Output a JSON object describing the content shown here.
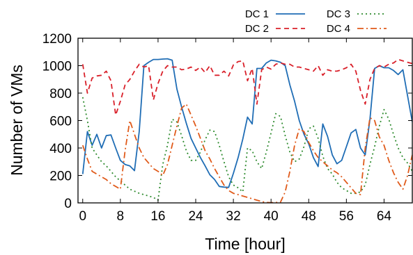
{
  "chart_data": {
    "type": "line",
    "xlabel": "Time [hour]",
    "ylabel": "Number of VMs",
    "xlim": [
      -1,
      70
    ],
    "ylim": [
      0,
      1200
    ],
    "xticks": [
      0,
      8,
      16,
      24,
      32,
      40,
      48,
      56,
      64
    ],
    "yticks": [
      0,
      200,
      400,
      600,
      800,
      1000,
      1200
    ],
    "legend_position": "top-right",
    "series": [
      {
        "name": "DC 1",
        "color": "#1f6db5",
        "dash": "solid",
        "points": [
          [
            0,
            210
          ],
          [
            1,
            520
          ],
          [
            2,
            420
          ],
          [
            3,
            500
          ],
          [
            4,
            400
          ],
          [
            5,
            490
          ],
          [
            6,
            495
          ],
          [
            7,
            400
          ],
          [
            8,
            310
          ],
          [
            9,
            280
          ],
          [
            10,
            270
          ],
          [
            11,
            235
          ],
          [
            12,
            520
          ],
          [
            13,
            1000
          ],
          [
            14,
            1025
          ],
          [
            15,
            1045
          ],
          [
            16,
            1045
          ],
          [
            17,
            1048
          ],
          [
            18,
            1050
          ],
          [
            19,
            1040
          ],
          [
            20,
            830
          ],
          [
            21,
            700
          ],
          [
            22,
            580
          ],
          [
            23,
            470
          ],
          [
            24,
            400
          ],
          [
            25,
            330
          ],
          [
            26,
            270
          ],
          [
            27,
            205
          ],
          [
            28,
            170
          ],
          [
            29,
            120
          ],
          [
            30,
            115
          ],
          [
            31,
            113
          ],
          [
            32,
            215
          ],
          [
            33,
            330
          ],
          [
            34,
            465
          ],
          [
            35,
            625
          ],
          [
            36,
            575
          ],
          [
            37,
            980
          ],
          [
            38,
            980
          ],
          [
            39,
            1020
          ],
          [
            40,
            1040
          ],
          [
            41,
            1035
          ],
          [
            42,
            1025
          ],
          [
            43,
            1000
          ],
          [
            44,
            860
          ],
          [
            45,
            740
          ],
          [
            46,
            600
          ],
          [
            47,
            500
          ],
          [
            48,
            430
          ],
          [
            49,
            330
          ],
          [
            50,
            265
          ],
          [
            51,
            575
          ],
          [
            52,
            485
          ],
          [
            53,
            350
          ],
          [
            54,
            285
          ],
          [
            55,
            310
          ],
          [
            56,
            410
          ],
          [
            57,
            510
          ],
          [
            58,
            535
          ],
          [
            59,
            400
          ],
          [
            60,
            350
          ],
          [
            61,
            610
          ],
          [
            62,
            980
          ],
          [
            63,
            1000
          ],
          [
            64,
            985
          ],
          [
            65,
            985
          ],
          [
            66,
            965
          ],
          [
            67,
            935
          ],
          [
            68,
            970
          ],
          [
            69,
            780
          ],
          [
            70,
            590
          ]
        ]
      },
      {
        "name": "DC 2",
        "color": "#d9202a",
        "dash": "dashed",
        "points": [
          [
            0,
            1010
          ],
          [
            1,
            800
          ],
          [
            2,
            910
          ],
          [
            3,
            925
          ],
          [
            4,
            930
          ],
          [
            5,
            960
          ],
          [
            6,
            890
          ],
          [
            7,
            640
          ],
          [
            8,
            740
          ],
          [
            9,
            860
          ],
          [
            10,
            900
          ],
          [
            11,
            960
          ],
          [
            12,
            1010
          ],
          [
            13,
            990
          ],
          [
            14,
            1000
          ],
          [
            15,
            750
          ],
          [
            16,
            870
          ],
          [
            17,
            960
          ],
          [
            18,
            1000
          ],
          [
            19,
            990
          ],
          [
            20,
            990
          ],
          [
            21,
            970
          ],
          [
            22,
            975
          ],
          [
            23,
            990
          ],
          [
            24,
            965
          ],
          [
            25,
            990
          ],
          [
            26,
            950
          ],
          [
            27,
            1000
          ],
          [
            28,
            930
          ],
          [
            29,
            930
          ],
          [
            30,
            960
          ],
          [
            31,
            925
          ],
          [
            32,
            1005
          ],
          [
            33,
            1030
          ],
          [
            34,
            1035
          ],
          [
            35,
            890
          ],
          [
            36,
            980
          ],
          [
            37,
            720
          ],
          [
            38,
            970
          ],
          [
            39,
            990
          ],
          [
            40,
            975
          ],
          [
            41,
            1010
          ],
          [
            42,
            1020
          ],
          [
            43,
            1010
          ],
          [
            44,
            1010
          ],
          [
            45,
            990
          ],
          [
            46,
            990
          ],
          [
            47,
            980
          ],
          [
            48,
            970
          ],
          [
            49,
            960
          ],
          [
            50,
            1000
          ],
          [
            51,
            930
          ],
          [
            52,
            970
          ],
          [
            53,
            960
          ],
          [
            54,
            960
          ],
          [
            55,
            970
          ],
          [
            56,
            985
          ],
          [
            57,
            1010
          ],
          [
            58,
            960
          ],
          [
            59,
            820
          ],
          [
            60,
            720
          ],
          [
            61,
            900
          ],
          [
            62,
            980
          ],
          [
            63,
            1000
          ],
          [
            64,
            990
          ],
          [
            65,
            1010
          ],
          [
            66,
            1020
          ],
          [
            67,
            1045
          ],
          [
            68,
            1035
          ],
          [
            69,
            1025
          ],
          [
            70,
            1015
          ]
        ]
      },
      {
        "name": "DC 3",
        "color": "#2e8b2e",
        "dash": "dotted",
        "points": [
          [
            0,
            770
          ],
          [
            1,
            600
          ],
          [
            2,
            400
          ],
          [
            3,
            350
          ],
          [
            4,
            300
          ],
          [
            5,
            270
          ],
          [
            6,
            230
          ],
          [
            7,
            190
          ],
          [
            8,
            160
          ],
          [
            9,
            130
          ],
          [
            10,
            100
          ],
          [
            11,
            85
          ],
          [
            12,
            70
          ],
          [
            13,
            60
          ],
          [
            14,
            50
          ],
          [
            15,
            40
          ],
          [
            16,
            20
          ],
          [
            17,
            280
          ],
          [
            18,
            420
          ],
          [
            19,
            610
          ],
          [
            20,
            590
          ],
          [
            21,
            490
          ],
          [
            22,
            380
          ],
          [
            23,
            310
          ],
          [
            24,
            310
          ],
          [
            25,
            370
          ],
          [
            26,
            460
          ],
          [
            27,
            530
          ],
          [
            28,
            520
          ],
          [
            29,
            420
          ],
          [
            30,
            300
          ],
          [
            31,
            190
          ],
          [
            32,
            130
          ],
          [
            33,
            110
          ],
          [
            34,
            80
          ],
          [
            35,
            400
          ],
          [
            36,
            380
          ],
          [
            37,
            300
          ],
          [
            38,
            250
          ],
          [
            39,
            370
          ],
          [
            40,
            510
          ],
          [
            41,
            650
          ],
          [
            42,
            630
          ],
          [
            43,
            490
          ],
          [
            44,
            370
          ],
          [
            45,
            300
          ],
          [
            46,
            320
          ],
          [
            47,
            410
          ],
          [
            48,
            540
          ],
          [
            49,
            560
          ],
          [
            50,
            470
          ],
          [
            51,
            340
          ],
          [
            52,
            250
          ],
          [
            53,
            210
          ],
          [
            54,
            150
          ],
          [
            55,
            110
          ],
          [
            56,
            90
          ],
          [
            57,
            70
          ],
          [
            58,
            70
          ],
          [
            59,
            80
          ],
          [
            60,
            130
          ],
          [
            61,
            280
          ],
          [
            62,
            410
          ],
          [
            63,
            560
          ],
          [
            64,
            680
          ],
          [
            65,
            610
          ],
          [
            66,
            500
          ],
          [
            67,
            400
          ],
          [
            68,
            330
          ],
          [
            69,
            290
          ],
          [
            70,
            230
          ]
        ]
      },
      {
        "name": "DC 4",
        "color": "#e05a1a",
        "dash": "dashdot",
        "points": [
          [
            0,
            420
          ],
          [
            1,
            320
          ],
          [
            2,
            230
          ],
          [
            3,
            210
          ],
          [
            4,
            190
          ],
          [
            5,
            170
          ],
          [
            6,
            140
          ],
          [
            7,
            120
          ],
          [
            8,
            100
          ],
          [
            9,
            380
          ],
          [
            10,
            600
          ],
          [
            11,
            500
          ],
          [
            12,
            400
          ],
          [
            13,
            330
          ],
          [
            14,
            290
          ],
          [
            15,
            250
          ],
          [
            16,
            230
          ],
          [
            17,
            200
          ],
          [
            18,
            280
          ],
          [
            19,
            420
          ],
          [
            20,
            560
          ],
          [
            21,
            690
          ],
          [
            22,
            720
          ],
          [
            23,
            640
          ],
          [
            24,
            560
          ],
          [
            25,
            470
          ],
          [
            26,
            380
          ],
          [
            27,
            320
          ],
          [
            28,
            250
          ],
          [
            29,
            190
          ],
          [
            30,
            130
          ],
          [
            31,
            90
          ],
          [
            32,
            70
          ],
          [
            33,
            60
          ],
          [
            34,
            50
          ],
          [
            35,
            40
          ],
          [
            36,
            30
          ],
          [
            37,
            20
          ],
          [
            38,
            10
          ],
          [
            39,
            3
          ],
          [
            40,
            2
          ],
          [
            41,
            3
          ],
          [
            42,
            5
          ],
          [
            43,
            80
          ],
          [
            44,
            230
          ],
          [
            45,
            420
          ],
          [
            46,
            540
          ],
          [
            47,
            520
          ],
          [
            48,
            440
          ],
          [
            49,
            380
          ],
          [
            50,
            330
          ],
          [
            51,
            300
          ],
          [
            52,
            270
          ],
          [
            53,
            240
          ],
          [
            54,
            220
          ],
          [
            55,
            190
          ],
          [
            56,
            150
          ],
          [
            57,
            110
          ],
          [
            58,
            70
          ],
          [
            59,
            60
          ],
          [
            60,
            400
          ],
          [
            61,
            620
          ],
          [
            62,
            600
          ],
          [
            63,
            480
          ],
          [
            64,
            420
          ],
          [
            65,
            310
          ],
          [
            66,
            220
          ],
          [
            67,
            150
          ],
          [
            68,
            100
          ],
          [
            69,
            200
          ],
          [
            70,
            350
          ]
        ]
      }
    ]
  }
}
